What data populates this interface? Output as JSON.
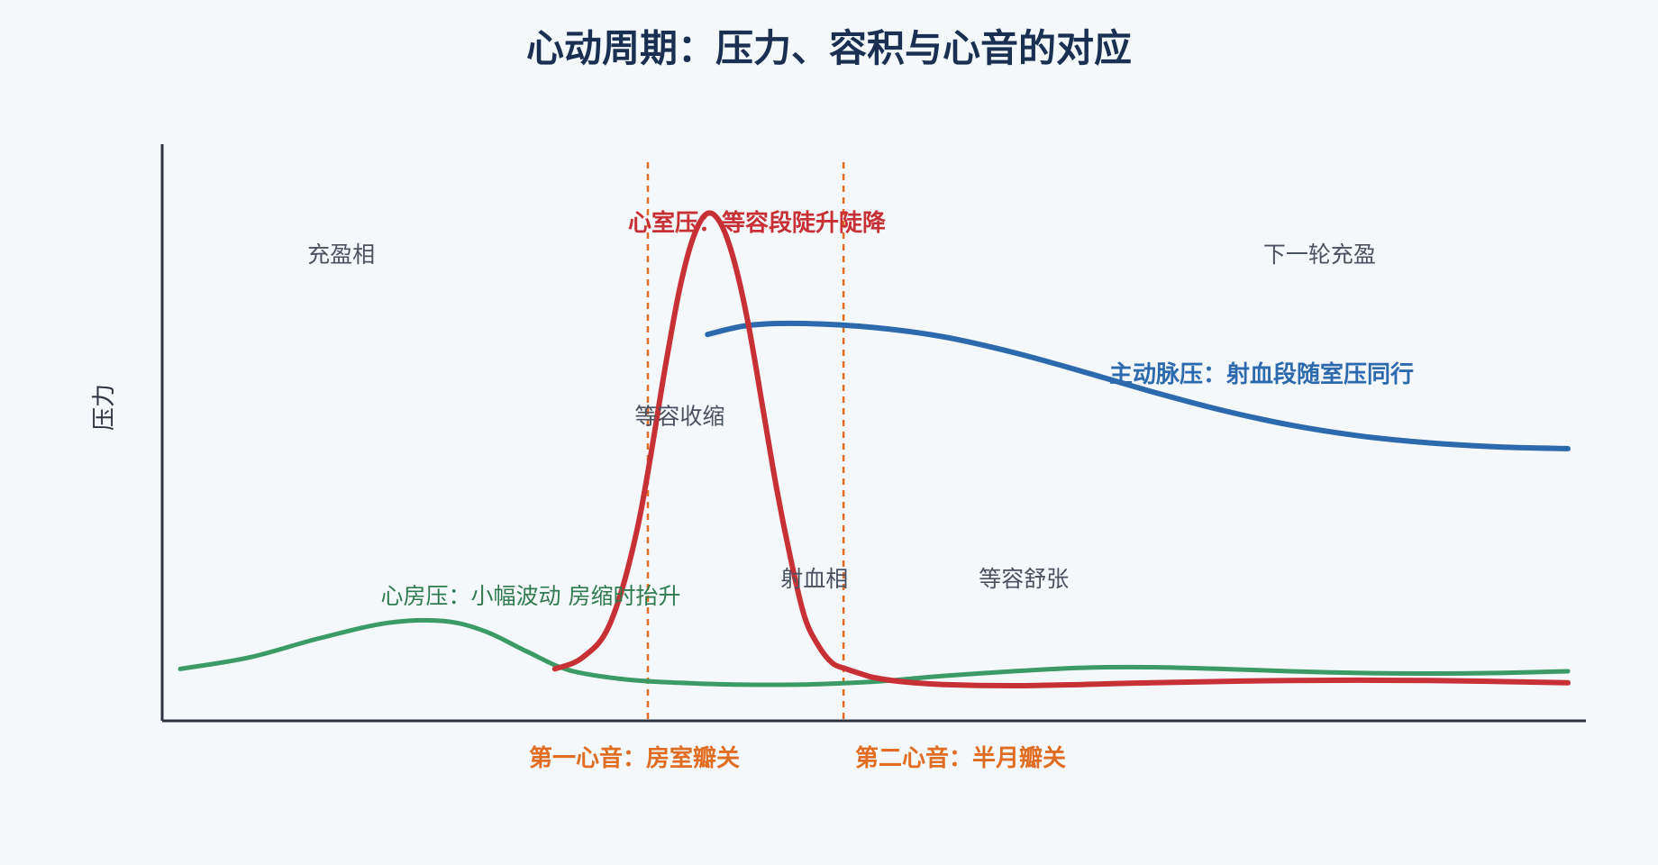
{
  "chart_data": {
    "type": "line",
    "title": "心动周期：压力、容积与心音的对应",
    "ylabel": "压力",
    "xlabel": "",
    "ylim": [
      0,
      100
    ],
    "xlim": [
      0,
      100
    ],
    "grid": false,
    "series": [
      {
        "name": "心室压：等容段陡升陡降",
        "key": "ventricular",
        "color": "#c73034",
        "x": [
          27,
          29,
          31,
          33,
          35,
          36,
          37,
          38,
          39,
          40,
          41,
          42,
          43,
          44,
          45,
          46,
          47,
          48,
          49,
          50,
          52,
          55,
          60,
          65,
          70,
          80,
          90,
          100
        ],
        "y": [
          9,
          11,
          17,
          34,
          62,
          75,
          84,
          88,
          86,
          79,
          68,
          54,
          40,
          28,
          18,
          13,
          10,
          9,
          8.2,
          7.5,
          6.8,
          6.3,
          6.1,
          6.3,
          6.6,
          7.0,
          7.0,
          6.6
        ]
      },
      {
        "name": "主动脉压：射血段随室压同行",
        "key": "aortic",
        "color": "#2d6aad",
        "x": [
          38,
          41,
          45,
          50,
          55,
          60,
          65,
          70,
          75,
          80,
          85,
          90,
          95,
          100
        ],
        "y": [
          67,
          68.6,
          68.9,
          68.2,
          66.6,
          63.9,
          60.6,
          57.1,
          53.9,
          51.3,
          49.4,
          48.2,
          47.5,
          47.2
        ]
      },
      {
        "name": "心房压：小幅波动 房缩时抬升",
        "key": "atrial",
        "color": "#3b9a65",
        "x": [
          0,
          5,
          10,
          15,
          19,
          22,
          25,
          28,
          32,
          36,
          40,
          45,
          50,
          55,
          60,
          65,
          70,
          75,
          80,
          85,
          90,
          95,
          100
        ],
        "y": [
          9,
          11,
          14.3,
          17,
          17.3,
          15.5,
          12,
          8.8,
          7.2,
          6.6,
          6.3,
          6.3,
          6.8,
          7.8,
          8.6,
          9.2,
          9.3,
          9.0,
          8.6,
          8.3,
          8.2,
          8.3,
          8.6
        ]
      }
    ],
    "vlines": [
      {
        "x": 33.7,
        "label": "第一心音：房室瓣关"
      },
      {
        "x": 47.8,
        "label": "第二心音：半月瓣关"
      }
    ],
    "annotations": [
      {
        "text": "充盈相",
        "x": 11.6,
        "y": 79.5
      },
      {
        "text": "等容收缩",
        "x": 36,
        "y": 51.5
      },
      {
        "text": "射血相",
        "x": 45.7,
        "y": 23.3
      },
      {
        "text": "等容舒张",
        "x": 60.8,
        "y": 23.3
      },
      {
        "text": "下一轮充盈",
        "x": 82.1,
        "y": 79.5
      }
    ],
    "colors": {
      "axis": "#2d3440",
      "sound_line": "#e06d22"
    }
  }
}
